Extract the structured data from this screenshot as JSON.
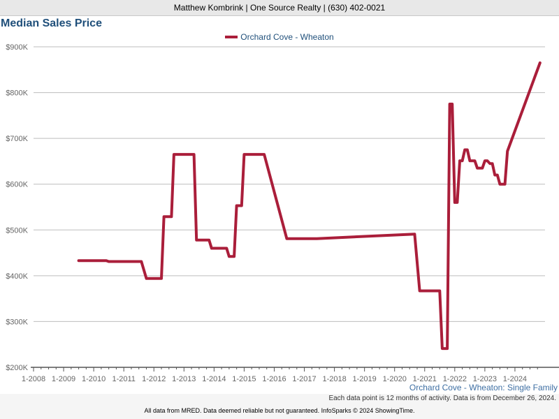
{
  "header": {
    "agent_line": "Matthew Kombrink | One Source Realty | (630) 402-0021"
  },
  "chart_data": {
    "type": "line",
    "title": "Median Sales Price",
    "series": [
      {
        "name": "Orchard Cove - Wheaton",
        "color": "#aa1e3a",
        "points": [
          [
            "2009-07",
            433000
          ],
          [
            "2010-06",
            433000
          ],
          [
            "2010-07",
            431000
          ],
          [
            "2011-08",
            431000
          ],
          [
            "2011-10",
            394000
          ],
          [
            "2012-04",
            394000
          ],
          [
            "2012-05",
            529000
          ],
          [
            "2012-08",
            529000
          ],
          [
            "2012-09",
            665000
          ],
          [
            "2013-05",
            665000
          ],
          [
            "2013-06",
            478000
          ],
          [
            "2013-11",
            478000
          ],
          [
            "2013-12",
            460000
          ],
          [
            "2014-06",
            460000
          ],
          [
            "2014-07",
            442000
          ],
          [
            "2014-09",
            442000
          ],
          [
            "2014-10",
            553000
          ],
          [
            "2014-12",
            553000
          ],
          [
            "2015-01",
            665000
          ],
          [
            "2015-09",
            665000
          ],
          [
            "2016-06",
            481000
          ],
          [
            "2017-06",
            481000
          ],
          [
            "2020-09",
            491000
          ],
          [
            "2020-11",
            367000
          ],
          [
            "2021-07",
            367000
          ],
          [
            "2021-08",
            241000
          ],
          [
            "2021-10",
            241000
          ],
          [
            "2021-11",
            775000
          ],
          [
            "2021-12",
            775000
          ],
          [
            "2022-01",
            560000
          ],
          [
            "2022-02",
            560000
          ],
          [
            "2022-03",
            651000
          ],
          [
            "2022-04",
            651000
          ],
          [
            "2022-05",
            675000
          ],
          [
            "2022-06",
            675000
          ],
          [
            "2022-07",
            651000
          ],
          [
            "2022-09",
            651000
          ],
          [
            "2022-10",
            635000
          ],
          [
            "2022-12",
            635000
          ],
          [
            "2023-01",
            651000
          ],
          [
            "2023-02",
            651000
          ],
          [
            "2023-03",
            645000
          ],
          [
            "2023-04",
            645000
          ],
          [
            "2023-05",
            620000
          ],
          [
            "2023-06",
            620000
          ],
          [
            "2023-07",
            600000
          ],
          [
            "2023-09",
            600000
          ],
          [
            "2023-10",
            672000
          ],
          [
            "2024-11",
            865000
          ]
        ]
      }
    ],
    "ylim": [
      200000,
      900000
    ],
    "yticks": [
      "$200K",
      "$300K",
      "$400K",
      "$500K",
      "$600K",
      "$700K",
      "$800K",
      "$900K"
    ],
    "xlim": [
      "2008-01",
      "2025-01"
    ],
    "xticks": [
      "1-2008",
      "1-2009",
      "1-2010",
      "1-2011",
      "1-2012",
      "1-2013",
      "1-2014",
      "1-2015",
      "1-2016",
      "1-2017",
      "1-2018",
      "1-2019",
      "1-2020",
      "1-2021",
      "1-2022",
      "1-2023",
      "1-2024"
    ],
    "grid": true,
    "legend_position": "top-center",
    "subtitle": "Orchard Cove - Wheaton: Single Family",
    "note": "Each data point is 12 months of activity. Data is from December 26, 2024."
  },
  "footer": {
    "disclaimer": "All data from MRED. Data deemed reliable but not guaranteed. InfoSparks © 2024 ShowingTime."
  }
}
